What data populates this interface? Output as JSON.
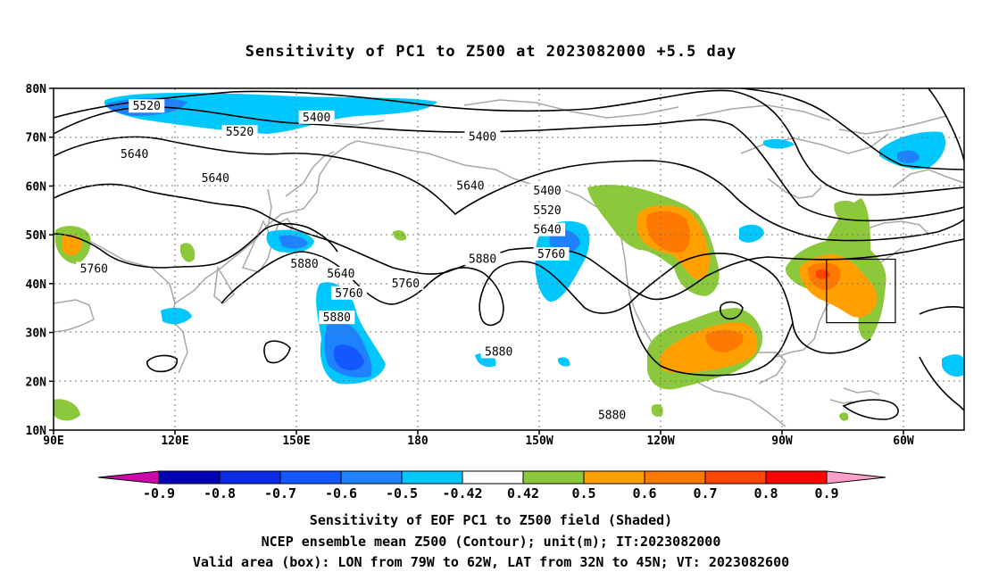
{
  "title": "Sensitivity of PC1 to Z500 at 2023082000 +5.5 day",
  "lat_labels": [
    "80N",
    "70N",
    "60N",
    "50N",
    "40N",
    "30N",
    "20N",
    "10N"
  ],
  "lon_labels": [
    "90E",
    "120E",
    "150E",
    "180",
    "150W",
    "120W",
    "90W",
    "60W"
  ],
  "contour_labels": [
    {
      "text": "5520",
      "lon": 113,
      "lat": 76.3
    },
    {
      "text": "5400",
      "lon": 155,
      "lat": 74
    },
    {
      "text": "5520",
      "lon": 136,
      "lat": 71
    },
    {
      "text": "5640",
      "lon": 110,
      "lat": 66.5
    },
    {
      "text": "5640",
      "lon": 130,
      "lat": 61.5
    },
    {
      "text": "5760",
      "lon": 100,
      "lat": 43
    },
    {
      "text": "5880",
      "lon": 152,
      "lat": 44
    },
    {
      "text": "5640",
      "lon": 161,
      "lat": 42
    },
    {
      "text": "5760",
      "lon": 163,
      "lat": 38
    },
    {
      "text": "5880",
      "lon": 160,
      "lat": 33
    },
    {
      "text": "5760",
      "lon": 177,
      "lat": 40
    },
    {
      "text": "5880",
      "lon": 196,
      "lat": 45
    },
    {
      "text": "5400",
      "lon": 196,
      "lat": 70
    },
    {
      "text": "5640",
      "lon": 193,
      "lat": 60
    },
    {
      "text": "5400",
      "lon": 212,
      "lat": 59
    },
    {
      "text": "5520",
      "lon": 212,
      "lat": 55
    },
    {
      "text": "5640",
      "lon": 212,
      "lat": 51
    },
    {
      "text": "5760",
      "lon": 213,
      "lat": 46
    },
    {
      "text": "5880",
      "lon": 200,
      "lat": 26
    },
    {
      "text": "5880",
      "lon": 228,
      "lat": 13
    }
  ],
  "valid_box": {
    "lon_min": -79,
    "lon_max": -62,
    "lat_min": 32,
    "lat_max": 45
  },
  "colorbar": {
    "colors": [
      "#0000b4",
      "#0a2ae6",
      "#1457ff",
      "#1e82ff",
      "#00c8ff",
      "#ffffff",
      "#8cc83c",
      "#ffa000",
      "#ff7800",
      "#ff4600",
      "#ff0000"
    ],
    "low_tri": "#cc0aaa",
    "high_tri": "#ff9ec8",
    "labels": [
      "-0.9",
      "-0.8",
      "-0.7",
      "-0.6",
      "-0.5",
      "-0.42",
      "0.42",
      "0.5",
      "0.6",
      "0.7",
      "0.8",
      "0.9"
    ]
  },
  "footer": {
    "line1": "Sensitivity of EOF PC1 to Z500 field (Shaded)",
    "line2": "NCEP ensemble mean Z500 (Contour); unit(m); IT:2023082000",
    "line3": "Valid area (box): LON from 79W to 62W, LAT from 32N to 45N; VT: 2023082600"
  }
}
